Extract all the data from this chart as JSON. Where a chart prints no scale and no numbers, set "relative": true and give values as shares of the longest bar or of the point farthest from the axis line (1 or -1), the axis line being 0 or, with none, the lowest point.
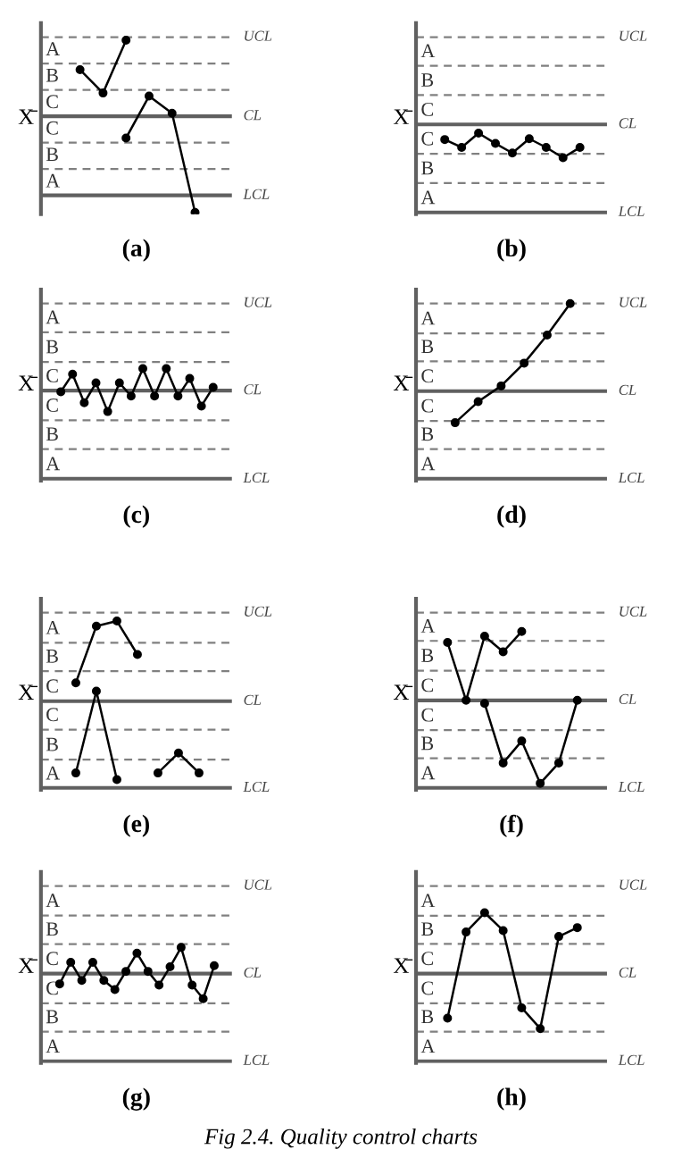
{
  "chart_data": [
    {
      "type": "line",
      "relative": true,
      "xlabel": "(a)",
      "ylabel": "X̄",
      "categories": [
        null,
        null,
        null,
        null,
        null,
        null
      ],
      "marker": "circle",
      "series": [
        {
          "color": "#000000",
          "values": [
            0.81,
            0.66,
            1,
            null,
            null,
            null
          ]
        },
        {
          "color": "#000000",
          "values": [
            null,
            null,
            0.37,
            0.64,
            0.53,
            -0.11
          ]
        }
      ],
      "ref_lines": [
        {
          "axis": "y",
          "value": 1.02,
          "label": "UCL",
          "color": "#808080",
          "line_style": "dashed"
        },
        {
          "axis": "y",
          "value": 0.85,
          "color": "#808080",
          "line_style": "dashed"
        },
        {
          "axis": "y",
          "value": 0.68,
          "color": "#808080",
          "line_style": "dashed"
        },
        {
          "axis": "y",
          "value": 0.51,
          "label": "CL",
          "color": "#606060",
          "line_style": "solid"
        },
        {
          "axis": "y",
          "value": 0.34,
          "color": "#808080",
          "line_style": "dashed"
        },
        {
          "axis": "y",
          "value": 0.17,
          "color": "#808080",
          "line_style": "dashed"
        },
        {
          "axis": "y",
          "value": 0,
          "label": "LCL",
          "color": "#606060",
          "line_style": "solid"
        }
      ],
      "annotations": [
        "A",
        "B",
        "C",
        "C",
        "B",
        "A"
      ]
    },
    {
      "type": "line",
      "relative": true,
      "xlabel": "(b)",
      "ylabel": "X̄",
      "categories": [
        null,
        null,
        null,
        null,
        null,
        null,
        null,
        null,
        null
      ],
      "marker": "circle",
      "series": [
        {
          "color": "#000000",
          "values": [
            0.92,
            0.82,
            1,
            0.87,
            0.75,
            0.93,
            0.82,
            0.69,
            0.82
          ]
        }
      ],
      "ref_lines": [
        {
          "axis": "y",
          "value": 2.21,
          "label": "UCL",
          "color": "#808080",
          "line_style": "dashed"
        },
        {
          "axis": "y",
          "value": 1.85,
          "color": "#808080",
          "line_style": "dashed"
        },
        {
          "axis": "y",
          "value": 1.48,
          "color": "#808080",
          "line_style": "dashed"
        },
        {
          "axis": "y",
          "value": 1.11,
          "label": "CL",
          "color": "#606060",
          "line_style": "solid"
        },
        {
          "axis": "y",
          "value": 0.74,
          "color": "#808080",
          "line_style": "dashed"
        },
        {
          "axis": "y",
          "value": 0.37,
          "color": "#808080",
          "line_style": "dashed"
        },
        {
          "axis": "y",
          "value": 0,
          "label": "LCL",
          "color": "#606060",
          "line_style": "solid"
        }
      ],
      "annotations": [
        "A",
        "B",
        "C",
        "C",
        "B",
        "A"
      ]
    },
    {
      "type": "line",
      "relative": true,
      "xlabel": "(c)",
      "ylabel": "X̄",
      "categories": [
        null,
        null,
        null,
        null,
        null,
        null,
        null,
        null,
        null,
        null,
        null,
        null,
        null,
        null
      ],
      "marker": "circle",
      "series": [
        {
          "color": "#000000",
          "values": [
            0.79,
            0.95,
            0.69,
            0.87,
            0.61,
            0.87,
            0.75,
            1,
            0.75,
            1,
            0.75,
            0.91,
            0.66,
            0.83
          ]
        }
      ],
      "ref_lines": [
        {
          "axis": "y",
          "value": 1.59,
          "label": "UCL",
          "color": "#808080",
          "line_style": "dashed"
        },
        {
          "axis": "y",
          "value": 1.33,
          "color": "#808080",
          "line_style": "dashed"
        },
        {
          "axis": "y",
          "value": 1.06,
          "color": "#808080",
          "line_style": "dashed"
        },
        {
          "axis": "y",
          "value": 0.8,
          "label": "CL",
          "color": "#606060",
          "line_style": "solid"
        },
        {
          "axis": "y",
          "value": 0.53,
          "color": "#808080",
          "line_style": "dashed"
        },
        {
          "axis": "y",
          "value": 0.27,
          "color": "#808080",
          "line_style": "dashed"
        },
        {
          "axis": "y",
          "value": 0,
          "label": "LCL",
          "color": "#606060",
          "line_style": "solid"
        }
      ],
      "annotations": [
        "A",
        "B",
        "C",
        "C",
        "B",
        "A"
      ]
    },
    {
      "type": "line",
      "relative": true,
      "xlabel": "(d)",
      "ylabel": "X̄",
      "categories": [
        null,
        null,
        null,
        null,
        null,
        null
      ],
      "marker": "circle",
      "series": [
        {
          "color": "#000000",
          "values": [
            0.32,
            0.44,
            0.53,
            0.66,
            0.82,
            1
          ]
        }
      ],
      "ref_lines": [
        {
          "axis": "y",
          "value": 1,
          "label": "UCL",
          "color": "#808080",
          "line_style": "dashed"
        },
        {
          "axis": "y",
          "value": 0.83,
          "color": "#808080",
          "line_style": "dashed"
        },
        {
          "axis": "y",
          "value": 0.67,
          "color": "#808080",
          "line_style": "dashed"
        },
        {
          "axis": "y",
          "value": 0.5,
          "label": "CL",
          "color": "#606060",
          "line_style": "solid"
        },
        {
          "axis": "y",
          "value": 0.33,
          "color": "#808080",
          "line_style": "dashed"
        },
        {
          "axis": "y",
          "value": 0.17,
          "color": "#808080",
          "line_style": "dashed"
        },
        {
          "axis": "y",
          "value": 0,
          "label": "LCL",
          "color": "#606060",
          "line_style": "solid"
        }
      ],
      "annotations": [
        "A",
        "B",
        "C",
        "C",
        "B",
        "A"
      ]
    },
    {
      "type": "line",
      "relative": true,
      "xlabel": "(e)",
      "ylabel": "X̄",
      "categories": [
        null,
        null,
        null,
        null,
        null,
        null,
        null
      ],
      "marker": "circle",
      "series": [
        {
          "color": "#000000",
          "values": [
            0.63,
            0.97,
            1,
            0.8,
            null,
            null,
            null
          ]
        },
        {
          "color": "#000000",
          "values": [
            0.09,
            0.58,
            0.05,
            null,
            null,
            null,
            null
          ]
        },
        {
          "color": "#000000",
          "values": [
            null,
            null,
            null,
            null,
            0.09,
            0.21,
            0.09
          ]
        }
      ],
      "ref_lines": [
        {
          "axis": "y",
          "value": 1.05,
          "label": "UCL",
          "color": "#808080",
          "line_style": "dashed"
        },
        {
          "axis": "y",
          "value": 0.87,
          "color": "#808080",
          "line_style": "dashed"
        },
        {
          "axis": "y",
          "value": 0.7,
          "color": "#808080",
          "line_style": "dashed"
        },
        {
          "axis": "y",
          "value": 0.52,
          "label": "CL",
          "color": "#606060",
          "line_style": "solid"
        },
        {
          "axis": "y",
          "value": 0.35,
          "color": "#808080",
          "line_style": "dashed"
        },
        {
          "axis": "y",
          "value": 0.17,
          "color": "#808080",
          "line_style": "dashed"
        },
        {
          "axis": "y",
          "value": 0,
          "label": "LCL",
          "color": "#606060",
          "line_style": "solid"
        }
      ],
      "annotations": [
        "A",
        "B",
        "C",
        "C",
        "B",
        "A"
      ]
    },
    {
      "type": "line",
      "relative": true,
      "xlabel": "(f)",
      "ylabel": "X̄",
      "categories": [
        null,
        null,
        null,
        null,
        null,
        null,
        null,
        null
      ],
      "marker": "circle",
      "series": [
        {
          "color": "#000000",
          "values": [
            0.93,
            0.56,
            0.97,
            0.87,
            1,
            null,
            null,
            null
          ]
        },
        {
          "color": "#000000",
          "values": [
            null,
            null,
            0.54,
            0.16,
            0.3,
            0.03,
            0.16,
            0.56
          ]
        }
      ],
      "ref_lines": [
        {
          "axis": "y",
          "value": 1.12,
          "label": "UCL",
          "color": "#808080",
          "line_style": "dashed"
        },
        {
          "axis": "y",
          "value": 0.94,
          "color": "#808080",
          "line_style": "dashed"
        },
        {
          "axis": "y",
          "value": 0.75,
          "color": "#808080",
          "line_style": "dashed"
        },
        {
          "axis": "y",
          "value": 0.56,
          "label": "CL",
          "color": "#606060",
          "line_style": "solid"
        },
        {
          "axis": "y",
          "value": 0.37,
          "color": "#808080",
          "line_style": "dashed"
        },
        {
          "axis": "y",
          "value": 0.19,
          "color": "#808080",
          "line_style": "dashed"
        },
        {
          "axis": "y",
          "value": 0,
          "label": "LCL",
          "color": "#606060",
          "line_style": "solid"
        }
      ],
      "annotations": [
        "A",
        "B",
        "C",
        "C",
        "B",
        "A"
      ]
    },
    {
      "type": "line",
      "relative": true,
      "xlabel": "(g)",
      "ylabel": "X̄",
      "categories": [
        null,
        null,
        null,
        null,
        null,
        null,
        null,
        null,
        null,
        null,
        null,
        null,
        null,
        null,
        null
      ],
      "marker": "circle",
      "series": [
        {
          "color": "#000000",
          "values": [
            0.68,
            0.87,
            0.71,
            0.87,
            0.71,
            0.63,
            0.79,
            0.95,
            0.79,
            0.67,
            0.83,
            1,
            0.67,
            0.55,
            0.84
          ]
        }
      ],
      "ref_lines": [
        {
          "axis": "y",
          "value": 1.54,
          "label": "UCL",
          "color": "#808080",
          "line_style": "dashed"
        },
        {
          "axis": "y",
          "value": 1.28,
          "color": "#808080",
          "line_style": "dashed"
        },
        {
          "axis": "y",
          "value": 1.03,
          "color": "#808080",
          "line_style": "dashed"
        },
        {
          "axis": "y",
          "value": 0.77,
          "label": "CL",
          "color": "#606060",
          "line_style": "solid"
        },
        {
          "axis": "y",
          "value": 0.51,
          "color": "#808080",
          "line_style": "dashed"
        },
        {
          "axis": "y",
          "value": 0.26,
          "color": "#808080",
          "line_style": "dashed"
        },
        {
          "axis": "y",
          "value": 0,
          "label": "LCL",
          "color": "#606060",
          "line_style": "solid"
        }
      ],
      "annotations": [
        "A",
        "B",
        "C",
        "C",
        "B",
        "A"
      ]
    },
    {
      "type": "line",
      "relative": true,
      "xlabel": "(h)",
      "ylabel": "X̄",
      "categories": [
        null,
        null,
        null,
        null,
        null,
        null,
        null,
        null
      ],
      "marker": "circle",
      "series": [
        {
          "color": "#000000",
          "values": [
            0.29,
            0.87,
            1,
            0.88,
            0.36,
            0.22,
            0.84,
            0.9
          ]
        }
      ],
      "ref_lines": [
        {
          "axis": "y",
          "value": 1.18,
          "label": "UCL",
          "color": "#808080",
          "line_style": "dashed"
        },
        {
          "axis": "y",
          "value": 0.98,
          "color": "#808080",
          "line_style": "dashed"
        },
        {
          "axis": "y",
          "value": 0.79,
          "color": "#808080",
          "line_style": "dashed"
        },
        {
          "axis": "y",
          "value": 0.59,
          "label": "CL",
          "color": "#606060",
          "line_style": "solid"
        },
        {
          "axis": "y",
          "value": 0.39,
          "color": "#808080",
          "line_style": "dashed"
        },
        {
          "axis": "y",
          "value": 0.2,
          "color": "#808080",
          "line_style": "dashed"
        },
        {
          "axis": "y",
          "value": 0,
          "label": "LCL",
          "color": "#606060",
          "line_style": "solid"
        }
      ],
      "annotations": [
        "A",
        "B",
        "C",
        "C",
        "B",
        "A",
        "Fig 2.4. Quality control charts"
      ]
    }
  ]
}
